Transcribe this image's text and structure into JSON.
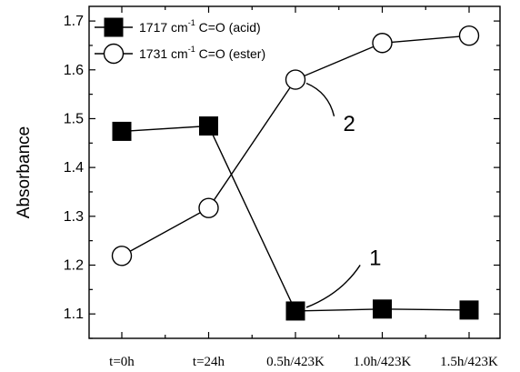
{
  "chart_data": {
    "type": "line",
    "categories": [
      "t=0h",
      "t=24h",
      "0.5h/423K",
      "1.0h/423K",
      "1.5h/423K"
    ],
    "ylabel": "Absorbance",
    "ylim": [
      1.05,
      1.73
    ],
    "yticks": [
      "1.1",
      "1.2",
      "1.3",
      "1.4",
      "1.5",
      "1.6",
      "1.7"
    ],
    "yminor_step": 0.05,
    "grid": false,
    "legend_position": "top-left",
    "series": [
      {
        "name_main": "1717 cm",
        "name_sup": "-1",
        "name_rest": " C=O (acid)",
        "marker": "filled-square",
        "color": "#000000",
        "values": [
          1.474,
          1.485,
          1.106,
          1.11,
          1.108
        ]
      },
      {
        "name_main": "1731 cm",
        "name_sup": "-1",
        "name_rest": " C=O (ester)",
        "marker": "open-circle",
        "color": "#000000",
        "values": [
          1.219,
          1.317,
          1.58,
          1.655,
          1.67
        ]
      }
    ],
    "annotations": [
      {
        "text": "1",
        "series_index": 0,
        "point_index": 2,
        "label_x": 2.85,
        "label_y": 1.215
      },
      {
        "text": "2",
        "series_index": 1,
        "point_index": 2,
        "label_x": 2.55,
        "label_y": 1.49
      }
    ]
  }
}
